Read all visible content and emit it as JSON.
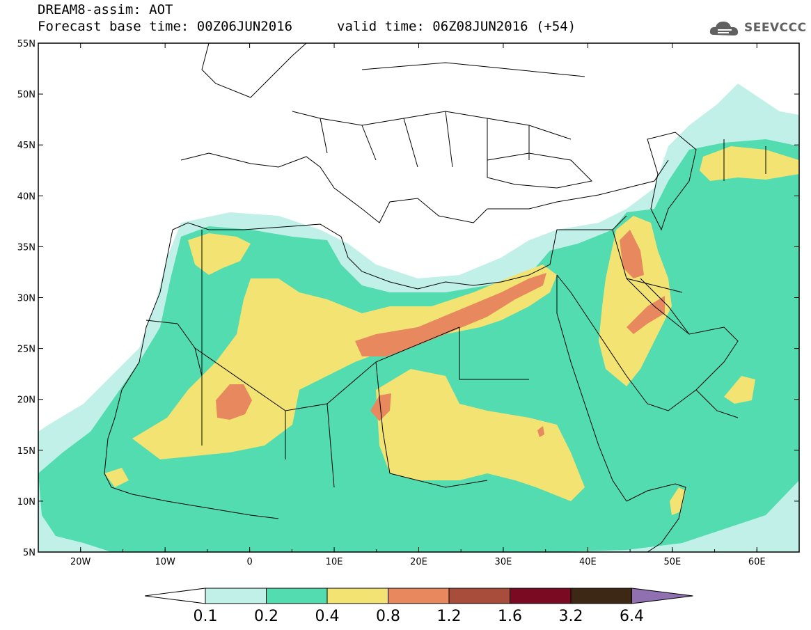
{
  "header": {
    "title": "DREAM8-assim: AOT",
    "base_time": "Forecast base time: 00Z06JUN2016",
    "valid_time": "valid time: 06Z08JUN2016 (+54)",
    "logo_text": "SEEVCCC"
  },
  "map": {
    "extent": {
      "lon": [
        -25,
        65
      ],
      "lat": [
        5,
        55
      ]
    },
    "lon_ticks": [
      "20W",
      "10W",
      "0",
      "10E",
      "20E",
      "30E",
      "40E",
      "50E",
      "60E"
    ],
    "lat_ticks": [
      "5N",
      "10N",
      "15N",
      "20N",
      "25N",
      "30N",
      "35N",
      "40N",
      "45N",
      "50N",
      "55N"
    ],
    "field": "AOT"
  },
  "legend": {
    "levels": [
      "0.1",
      "0.2",
      "0.4",
      "0.8",
      "1.2",
      "1.6",
      "3.2",
      "6.4"
    ],
    "colors": [
      "#ffffff",
      "#c0f0e8",
      "#52dcb0",
      "#f2e372",
      "#e8885e",
      "#a84c3c",
      "#7a0a22",
      "#3c2814",
      "#9070b0"
    ]
  }
}
